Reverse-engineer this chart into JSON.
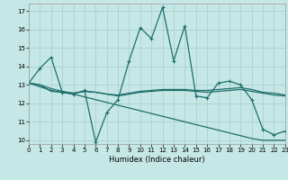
{
  "xlabel": "Humidex (Indice chaleur)",
  "xlim": [
    0,
    23
  ],
  "ylim": [
    9.8,
    17.4
  ],
  "yticks": [
    10,
    11,
    12,
    13,
    14,
    15,
    16,
    17
  ],
  "xticks": [
    0,
    1,
    2,
    3,
    4,
    5,
    6,
    7,
    8,
    9,
    10,
    11,
    12,
    13,
    14,
    15,
    16,
    17,
    18,
    19,
    20,
    21,
    22,
    23
  ],
  "bg_color": "#c5e8e6",
  "grid_color": "#a8ccca",
  "line_color": "#1e6e6a",
  "line0": [
    13.1,
    13.9,
    14.5,
    12.6,
    12.5,
    12.7,
    9.9,
    11.5,
    12.2,
    14.3,
    16.1,
    15.5,
    17.2,
    14.3,
    16.2,
    12.4,
    12.3,
    13.1,
    13.2,
    13.0,
    12.2,
    10.6,
    10.3,
    10.5
  ],
  "line1": [
    13.1,
    13.0,
    12.65,
    12.6,
    12.55,
    12.65,
    12.6,
    12.5,
    12.45,
    12.55,
    12.65,
    12.7,
    12.75,
    12.75,
    12.75,
    12.7,
    12.7,
    12.75,
    12.8,
    12.85,
    12.75,
    12.6,
    12.55,
    12.45
  ],
  "line2": [
    13.1,
    12.9,
    12.7,
    12.6,
    12.5,
    12.35,
    12.2,
    12.05,
    11.9,
    11.75,
    11.6,
    11.45,
    11.3,
    11.15,
    11.0,
    10.85,
    10.7,
    10.55,
    10.4,
    10.25,
    10.1,
    10.0,
    10.0,
    10.0
  ],
  "line3": [
    13.1,
    13.0,
    12.8,
    12.65,
    12.55,
    12.65,
    12.6,
    12.5,
    12.4,
    12.5,
    12.6,
    12.65,
    12.7,
    12.7,
    12.7,
    12.65,
    12.6,
    12.65,
    12.7,
    12.75,
    12.65,
    12.55,
    12.45,
    12.4
  ]
}
